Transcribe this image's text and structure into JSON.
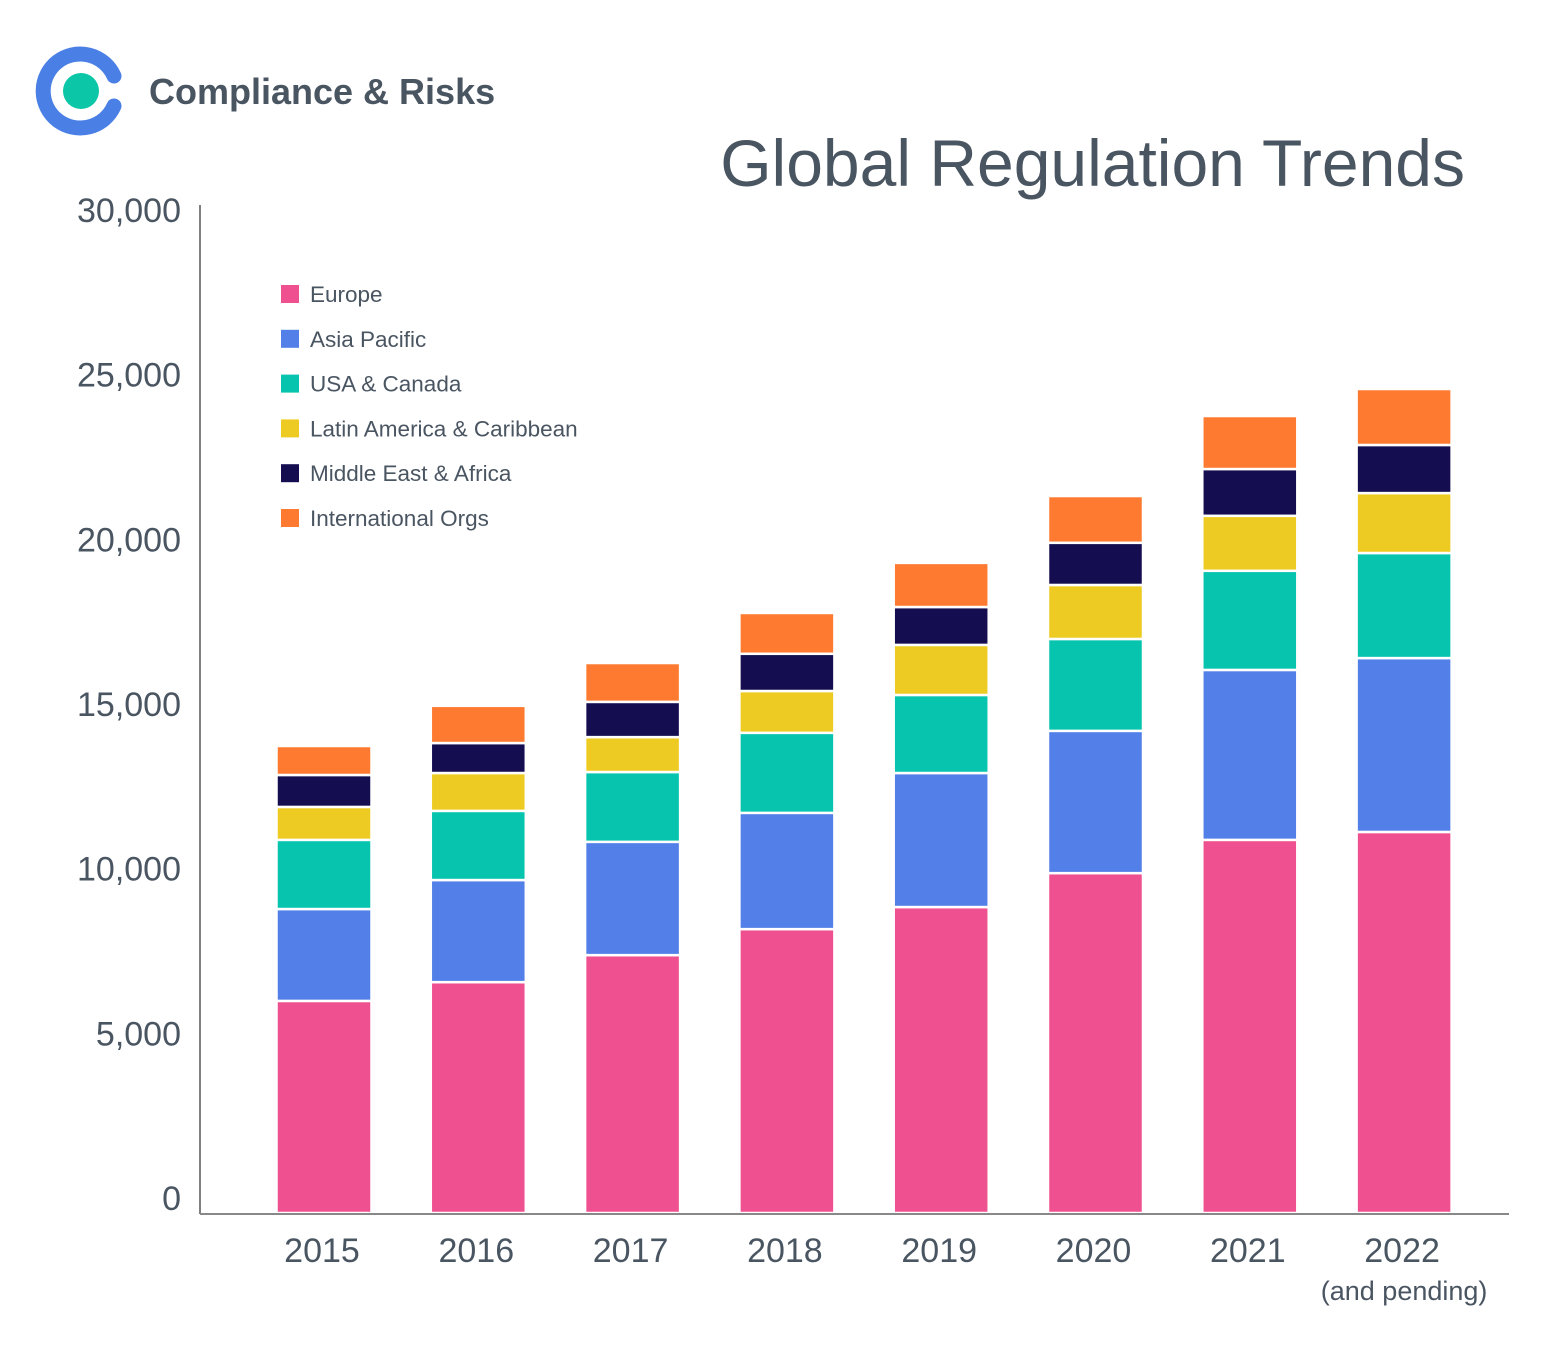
{
  "brand": {
    "name": "Compliance & Risks",
    "ring_color": "#4A7FE6",
    "dot_color": "#0CC6A8"
  },
  "chart_data": {
    "type": "bar",
    "stacked": true,
    "title": "Global Regulation Trends",
    "xlabel": "",
    "ylabel": "",
    "ylim": [
      0,
      30000
    ],
    "yticks": [
      0,
      5000,
      10000,
      15000,
      20000,
      25000,
      30000
    ],
    "ytick_labels": [
      "0",
      "5,000",
      "10,000",
      "15,000",
      "20,000",
      "25,000",
      "30,000"
    ],
    "categories": [
      "2015",
      "2016",
      "2017",
      "2018",
      "2019",
      "2020",
      "2021",
      "2022"
    ],
    "category_note": {
      "2022": "(and pending)"
    },
    "grid": false,
    "legend_position": "top-left",
    "series": [
      {
        "name": "Europe",
        "color": "#EF5090",
        "values": [
          6440,
          7010,
          7830,
          8620,
          9290,
          10320,
          11330,
          11570
        ]
      },
      {
        "name": "Asia Pacific",
        "color": "#527FE8",
        "values": [
          2790,
          3100,
          3440,
          3530,
          4070,
          4320,
          5160,
          5280
        ]
      },
      {
        "name": "USA & Canada",
        "color": "#06C4AE",
        "values": [
          2100,
          2100,
          2120,
          2430,
          2370,
          2790,
          3010,
          3190
        ]
      },
      {
        "name": "Latin America & Caribbean",
        "color": "#EECB22",
        "values": [
          1000,
          1150,
          1060,
          1270,
          1520,
          1640,
          1670,
          1820
        ]
      },
      {
        "name": "Middle East & Africa",
        "color": "#140D4F",
        "values": [
          970,
          910,
          1070,
          1130,
          1150,
          1280,
          1420,
          1460
        ]
      },
      {
        "name": "International Orgs",
        "color": "#FE7A30",
        "values": [
          880,
          1130,
          1180,
          1240,
          1340,
          1420,
          1610,
          1700
        ]
      }
    ]
  }
}
